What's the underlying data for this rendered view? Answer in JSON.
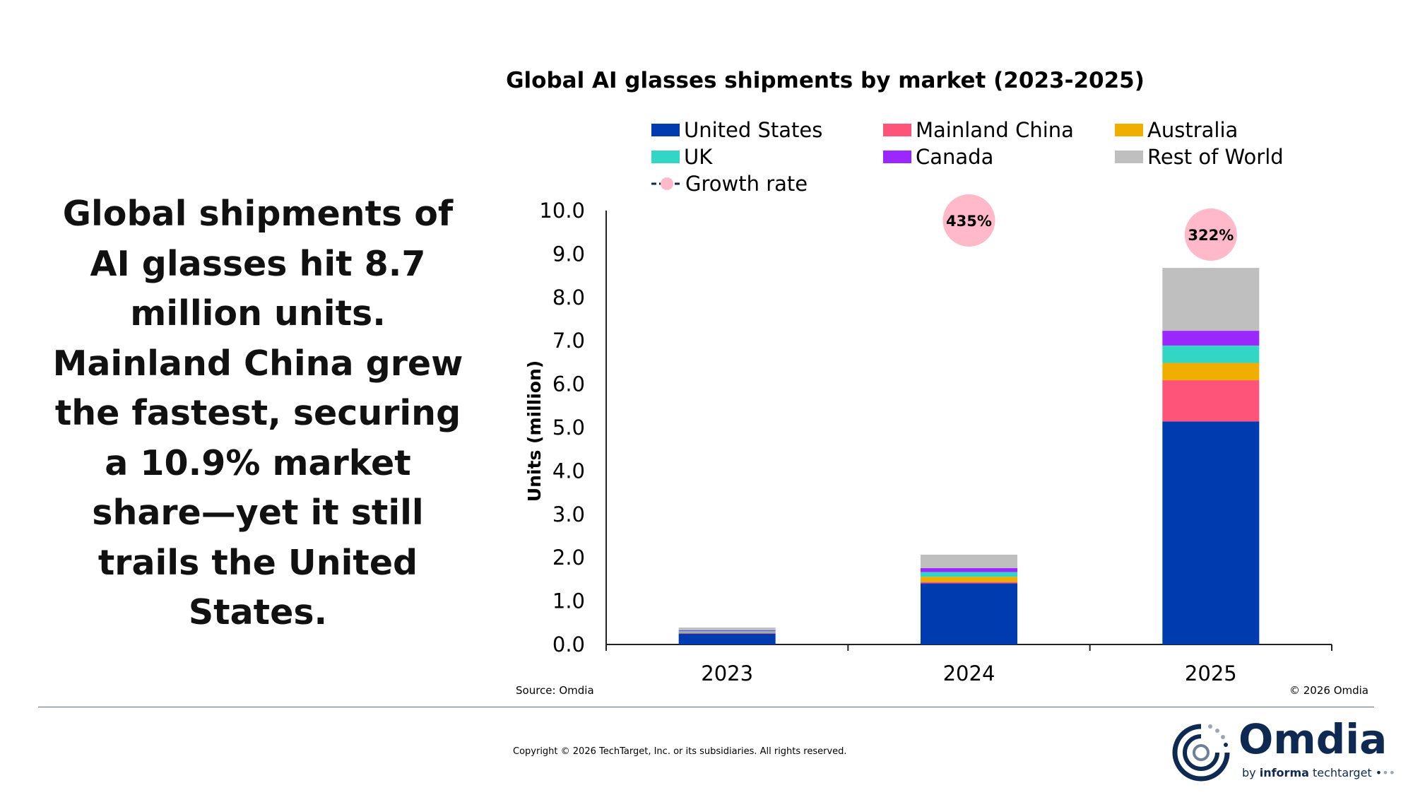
{
  "headline": "Global shipments of AI glasses hit 8.7 million units. Mainland China grew the fastest, securing a 10.9% market share—yet it still trails the United States.",
  "chart_data": {
    "type": "bar",
    "stacked": true,
    "title": "Global AI glasses shipments by market (2023-2025)",
    "xlabel": "",
    "ylabel": "Units (million)",
    "ylim": [
      0,
      10
    ],
    "yticks": [
      "0.0",
      "1.0",
      "2.0",
      "3.0",
      "4.0",
      "5.0",
      "6.0",
      "7.0",
      "8.0",
      "9.0",
      "10.0"
    ],
    "grid": false,
    "legend_position": "top",
    "categories": [
      "2023",
      "2024",
      "2025"
    ],
    "series": [
      {
        "name": "United States",
        "color": "#003bb0",
        "values": [
          0.25,
          1.41,
          5.14
        ]
      },
      {
        "name": "Mainland China",
        "color": "#ff547a",
        "values": [
          0.02,
          0.03,
          0.95
        ]
      },
      {
        "name": "Australia",
        "color": "#f0ae00",
        "values": [
          0.01,
          0.12,
          0.4
        ]
      },
      {
        "name": "UK",
        "color": "#33d6c5",
        "values": [
          0.03,
          0.11,
          0.4
        ]
      },
      {
        "name": "Canada",
        "color": "#9b27ff",
        "values": [
          0.02,
          0.09,
          0.34
        ]
      },
      {
        "name": "Rest of World",
        "color": "#bfbfbf",
        "values": [
          0.06,
          0.31,
          1.45
        ]
      }
    ],
    "growth_series": {
      "name": "Growth rate",
      "color": "#ffb9c8",
      "line_color": "#0f2a52",
      "values": [
        null,
        435,
        322
      ],
      "labels": [
        "",
        "435%",
        "322%"
      ]
    }
  },
  "source": "Source: Omdia",
  "copyright_chart": "© 2026 Omdia",
  "footer_copyright": "Copyright © 2026 TechTarget, Inc. or its subsidiaries. All rights reserved.",
  "logo": {
    "word": "Omdia",
    "sub_prefix": "by ",
    "sub_bold": "informa",
    "sub_suffix": " techtarget"
  }
}
